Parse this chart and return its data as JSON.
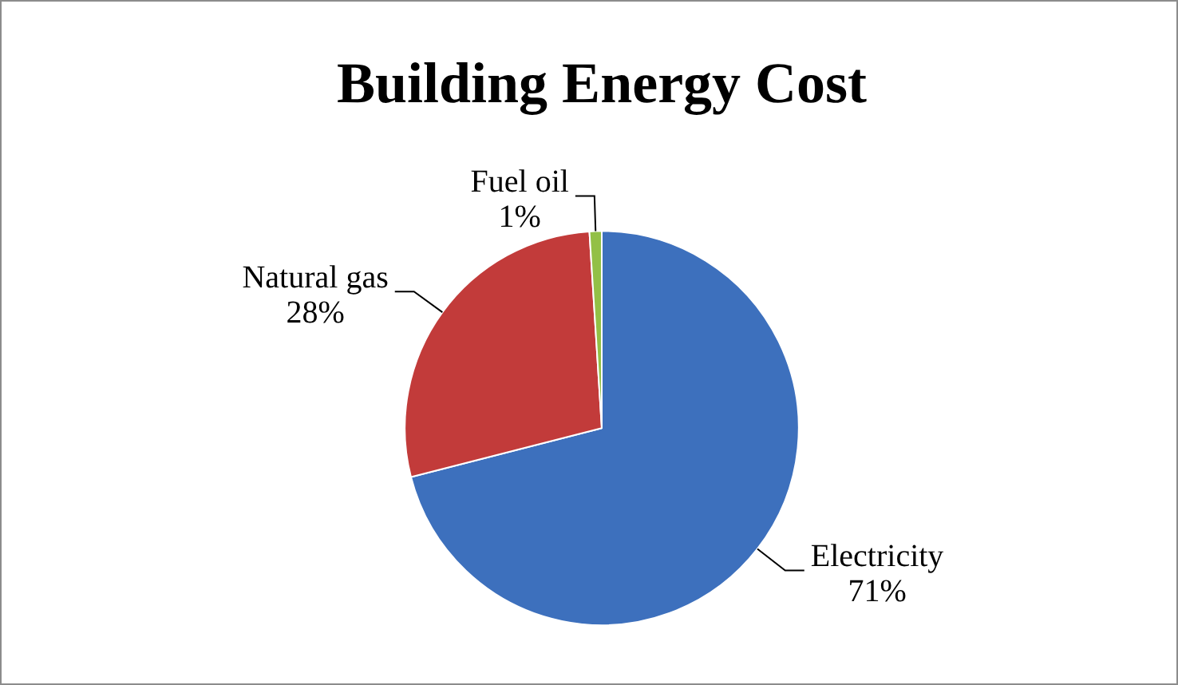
{
  "chart_data": {
    "type": "pie",
    "title": "Building Energy Cost",
    "categories": [
      "Electricity",
      "Natural gas",
      "Fuel oil"
    ],
    "values": [
      71,
      28,
      1
    ],
    "value_labels": [
      "71%",
      "28%",
      "1%"
    ],
    "colors": [
      "#3d70bd",
      "#c23b3a",
      "#93c046"
    ],
    "legend": false
  }
}
